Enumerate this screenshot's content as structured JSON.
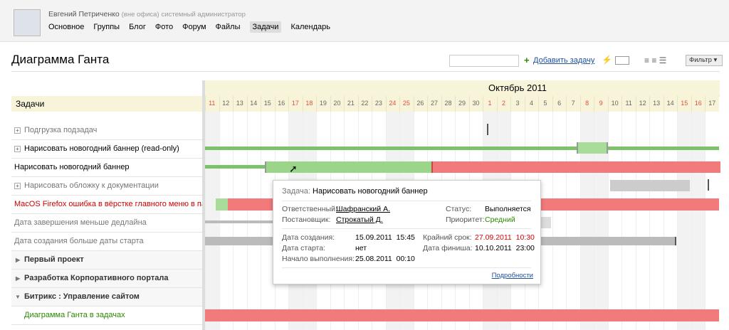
{
  "header": {
    "user_name": "Евгений Петриченко",
    "user_status": "(вне офиса)",
    "user_position": "системный администратор",
    "nav": [
      "Основное",
      "Группы",
      "Блог",
      "Фото",
      "Форум",
      "Файлы",
      "Задачи",
      "Календарь"
    ]
  },
  "page_title": "Диаграмма Ганта",
  "toolbar": {
    "add_task": "Добавить задачу",
    "filter": "Фильтр"
  },
  "gantt": {
    "tasks_header": "Задачи",
    "month": "Октябрь 2011",
    "days": [
      {
        "day": 11,
        "weekend": true
      },
      {
        "day": 12,
        "weekend": false
      },
      {
        "day": 13,
        "weekend": false
      },
      {
        "day": 14,
        "weekend": false
      },
      {
        "day": 15,
        "weekend": false
      },
      {
        "day": 16,
        "weekend": false
      },
      {
        "day": 17,
        "weekend": true
      },
      {
        "day": 18,
        "weekend": true
      },
      {
        "day": 19,
        "weekend": false
      },
      {
        "day": 20,
        "weekend": false
      },
      {
        "day": 21,
        "weekend": false
      },
      {
        "day": 22,
        "weekend": false
      },
      {
        "day": 23,
        "weekend": false
      },
      {
        "day": 24,
        "weekend": true
      },
      {
        "day": 25,
        "weekend": true
      },
      {
        "day": 26,
        "weekend": false
      },
      {
        "day": 27,
        "weekend": false
      },
      {
        "day": 28,
        "weekend": false
      },
      {
        "day": 29,
        "weekend": false
      },
      {
        "day": 30,
        "weekend": false
      },
      {
        "day": 1,
        "weekend": true
      },
      {
        "day": 2,
        "weekend": true
      },
      {
        "day": 3,
        "weekend": false
      },
      {
        "day": 4,
        "weekend": false
      },
      {
        "day": 5,
        "weekend": false
      },
      {
        "day": 6,
        "weekend": false
      },
      {
        "day": 7,
        "weekend": false
      },
      {
        "day": 8,
        "weekend": true
      },
      {
        "day": 9,
        "weekend": true
      },
      {
        "day": 10,
        "weekend": false
      },
      {
        "day": 11,
        "weekend": false
      },
      {
        "day": 12,
        "weekend": false
      },
      {
        "day": 13,
        "weekend": false
      },
      {
        "day": 14,
        "weekend": false
      },
      {
        "day": 15,
        "weekend": true
      },
      {
        "day": 16,
        "weekend": true
      },
      {
        "day": 17,
        "weekend": false
      }
    ],
    "rows": [
      "Подгрузка подзадач",
      "Нарисовать новогодний баннер (read-only)",
      "Нарисовать новогодний баннер",
      "Нарисовать обложку к документации",
      "MacOS Firefox ошибка в вёрстке главного меню в партнёрском",
      "Дата завершения меньше дедлайна",
      "Дата создания больше даты старта",
      "Первый проект",
      "Разработка Корпоративного портала",
      "Битрикс : Управление сайтом",
      "Диаграмма Ганта в задачах"
    ]
  },
  "popup": {
    "task_label": "Задача:",
    "task_name": "Нарисовать новогодний баннер",
    "responsible_label": "Ответственный:",
    "responsible": "Шафранский А.",
    "status_label": "Статус:",
    "status": "Выполняется",
    "creator_label": "Постановщик:",
    "creator": "Строкатый Д.",
    "priority_label": "Приоритет:",
    "priority": "Средний",
    "created_label": "Дата создания:",
    "created_date": "15.09.2011",
    "created_time": "15:45",
    "deadline_label": "Крайний срок:",
    "deadline_date": "27.09.2011",
    "deadline_time": "10:30",
    "start_label": "Дата старта:",
    "start": "нет",
    "finish_label": "Дата финиша:",
    "finish_date": "10.10.2011",
    "finish_time": "23:00",
    "began_label": "Начало выполнения:",
    "began_date": "25.08.2011",
    "began_time": "00:10",
    "details": "Подробности"
  }
}
